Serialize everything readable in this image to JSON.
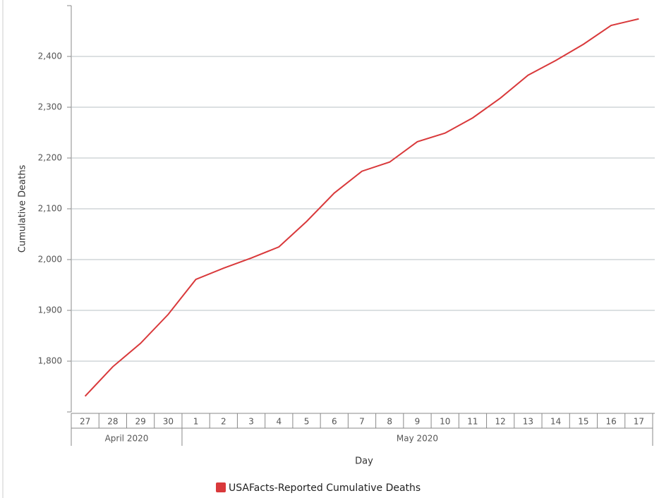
{
  "chart_data": {
    "type": "line",
    "x_label": "Day",
    "y_label": "Cumulative Deaths",
    "categories": [
      "27",
      "28",
      "29",
      "30",
      "1",
      "2",
      "3",
      "4",
      "5",
      "6",
      "7",
      "8",
      "9",
      "10",
      "11",
      "12",
      "13",
      "14",
      "15",
      "16",
      "17"
    ],
    "groups": [
      {
        "label": "April 2020",
        "count": 4
      },
      {
        "label": "May 2020",
        "count": 17
      }
    ],
    "series": [
      {
        "name": "USAFacts-Reported Cumulative Deaths",
        "color": "#d9393b",
        "values": [
          1731,
          1789,
          1835,
          1892,
          1961,
          1983,
          2003,
          2025,
          2075,
          2131,
          2174,
          2192,
          2232,
          2249,
          2279,
          2318,
          2363,
          2392,
          2424,
          2461,
          2474
        ]
      }
    ],
    "ylim": [
      1700,
      2500
    ],
    "yticks": [
      {
        "value": 1800,
        "label": "1,800"
      },
      {
        "value": 1900,
        "label": "1,900"
      },
      {
        "value": 2000,
        "label": "2,000"
      },
      {
        "value": 2100,
        "label": "2,100"
      },
      {
        "value": 2200,
        "label": "2,200"
      },
      {
        "value": 2300,
        "label": "2,300"
      },
      {
        "value": 2400,
        "label": "2,400"
      }
    ],
    "grid": true
  }
}
